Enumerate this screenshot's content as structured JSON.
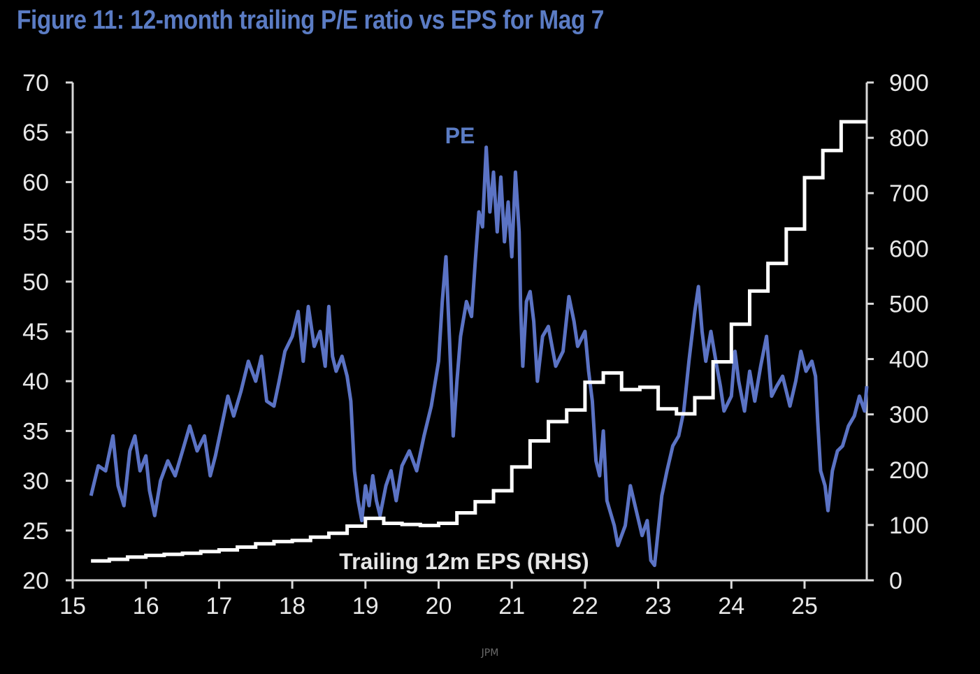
{
  "chart_data": {
    "type": "line",
    "title": "Figure 11: 12-month trailing P/E ratio vs EPS for Mag 7",
    "x_ticks": [
      "15",
      "16",
      "17",
      "18",
      "19",
      "20",
      "21",
      "22",
      "23",
      "24",
      "25"
    ],
    "x_range": [
      15,
      25.85
    ],
    "y_left": {
      "range": [
        20,
        70
      ],
      "ticks": [
        20,
        25,
        30,
        35,
        40,
        45,
        50,
        55,
        60,
        65,
        70
      ]
    },
    "y_right": {
      "range": [
        0,
        900
      ],
      "ticks": [
        0,
        100,
        200,
        300,
        400,
        500,
        600,
        700,
        800,
        900
      ]
    },
    "series": [
      {
        "name": "PE",
        "axis": "left",
        "color": "#5b73c4",
        "style": "line",
        "points": [
          [
            15.25,
            28.5
          ],
          [
            15.35,
            31.5
          ],
          [
            15.45,
            31.0
          ],
          [
            15.55,
            34.5
          ],
          [
            15.62,
            29.5
          ],
          [
            15.7,
            27.5
          ],
          [
            15.78,
            33.0
          ],
          [
            15.85,
            34.5
          ],
          [
            15.92,
            31.0
          ],
          [
            16.0,
            32.5
          ],
          [
            16.05,
            29.0
          ],
          [
            16.12,
            26.5
          ],
          [
            16.2,
            30.0
          ],
          [
            16.3,
            32.0
          ],
          [
            16.4,
            30.5
          ],
          [
            16.5,
            33.0
          ],
          [
            16.6,
            35.5
          ],
          [
            16.7,
            33.0
          ],
          [
            16.8,
            34.5
          ],
          [
            16.88,
            30.5
          ],
          [
            16.95,
            32.5
          ],
          [
            17.05,
            36.0
          ],
          [
            17.12,
            38.5
          ],
          [
            17.2,
            36.5
          ],
          [
            17.3,
            39.0
          ],
          [
            17.4,
            42.0
          ],
          [
            17.5,
            40.0
          ],
          [
            17.58,
            42.5
          ],
          [
            17.65,
            38.0
          ],
          [
            17.75,
            37.5
          ],
          [
            17.82,
            40.0
          ],
          [
            17.9,
            43.0
          ],
          [
            18.0,
            44.5
          ],
          [
            18.08,
            47.0
          ],
          [
            18.15,
            42.0
          ],
          [
            18.22,
            47.5
          ],
          [
            18.3,
            43.5
          ],
          [
            18.38,
            45.0
          ],
          [
            18.45,
            41.5
          ],
          [
            18.5,
            47.5
          ],
          [
            18.55,
            42.5
          ],
          [
            18.6,
            41.0
          ],
          [
            18.68,
            42.5
          ],
          [
            18.75,
            40.5
          ],
          [
            18.8,
            38.0
          ],
          [
            18.85,
            31.0
          ],
          [
            18.9,
            28.0
          ],
          [
            18.95,
            26.0
          ],
          [
            19.0,
            29.5
          ],
          [
            19.05,
            27.5
          ],
          [
            19.1,
            30.5
          ],
          [
            19.15,
            28.0
          ],
          [
            19.2,
            26.5
          ],
          [
            19.28,
            29.5
          ],
          [
            19.35,
            31.0
          ],
          [
            19.42,
            28.0
          ],
          [
            19.5,
            31.5
          ],
          [
            19.6,
            33.0
          ],
          [
            19.7,
            31.0
          ],
          [
            19.8,
            34.5
          ],
          [
            19.9,
            37.5
          ],
          [
            20.0,
            42.0
          ],
          [
            20.05,
            48.0
          ],
          [
            20.1,
            52.5
          ],
          [
            20.15,
            44.0
          ],
          [
            20.2,
            34.5
          ],
          [
            20.25,
            40.0
          ],
          [
            20.3,
            44.5
          ],
          [
            20.38,
            48.0
          ],
          [
            20.45,
            46.5
          ],
          [
            20.5,
            52.0
          ],
          [
            20.55,
            57.0
          ],
          [
            20.6,
            55.5
          ],
          [
            20.65,
            63.5
          ],
          [
            20.7,
            57.0
          ],
          [
            20.75,
            61.0
          ],
          [
            20.8,
            55.0
          ],
          [
            20.85,
            60.5
          ],
          [
            20.9,
            54.0
          ],
          [
            20.95,
            58.0
          ],
          [
            21.0,
            52.5
          ],
          [
            21.05,
            61.0
          ],
          [
            21.1,
            55.0
          ],
          [
            21.12,
            47.5
          ],
          [
            21.15,
            41.5
          ],
          [
            21.2,
            48.0
          ],
          [
            21.25,
            49.0
          ],
          [
            21.3,
            46.0
          ],
          [
            21.35,
            40.0
          ],
          [
            21.42,
            44.5
          ],
          [
            21.5,
            45.5
          ],
          [
            21.6,
            41.5
          ],
          [
            21.7,
            43.0
          ],
          [
            21.78,
            48.5
          ],
          [
            21.85,
            46.0
          ],
          [
            21.9,
            43.5
          ],
          [
            22.0,
            45.0
          ],
          [
            22.05,
            41.0
          ],
          [
            22.1,
            38.0
          ],
          [
            22.15,
            32.0
          ],
          [
            22.2,
            30.5
          ],
          [
            22.25,
            35.0
          ],
          [
            22.3,
            28.0
          ],
          [
            22.4,
            25.5
          ],
          [
            22.45,
            23.5
          ],
          [
            22.55,
            25.5
          ],
          [
            22.62,
            29.5
          ],
          [
            22.7,
            27.0
          ],
          [
            22.78,
            24.5
          ],
          [
            22.85,
            26.0
          ],
          [
            22.9,
            22.0
          ],
          [
            22.95,
            21.5
          ],
          [
            23.0,
            25.0
          ],
          [
            23.05,
            28.5
          ],
          [
            23.12,
            31.0
          ],
          [
            23.2,
            33.5
          ],
          [
            23.28,
            34.5
          ],
          [
            23.35,
            37.0
          ],
          [
            23.42,
            42.0
          ],
          [
            23.5,
            47.0
          ],
          [
            23.55,
            49.5
          ],
          [
            23.6,
            45.0
          ],
          [
            23.65,
            42.0
          ],
          [
            23.72,
            45.0
          ],
          [
            23.8,
            41.5
          ],
          [
            23.85,
            39.5
          ],
          [
            23.9,
            37.0
          ],
          [
            24.0,
            38.5
          ],
          [
            24.05,
            43.0
          ],
          [
            24.1,
            40.0
          ],
          [
            24.18,
            37.0
          ],
          [
            24.25,
            41.0
          ],
          [
            24.32,
            38.0
          ],
          [
            24.4,
            41.5
          ],
          [
            24.48,
            44.5
          ],
          [
            24.55,
            38.5
          ],
          [
            24.62,
            39.5
          ],
          [
            24.7,
            40.5
          ],
          [
            24.8,
            37.5
          ],
          [
            24.88,
            40.0
          ],
          [
            24.95,
            43.0
          ],
          [
            25.02,
            41.0
          ],
          [
            25.1,
            42.0
          ],
          [
            25.15,
            40.5
          ],
          [
            25.18,
            36.0
          ],
          [
            25.22,
            31.0
          ],
          [
            25.28,
            29.5
          ],
          [
            25.32,
            27.0
          ],
          [
            25.38,
            31.0
          ],
          [
            25.45,
            33.0
          ],
          [
            25.52,
            33.5
          ],
          [
            25.6,
            35.5
          ],
          [
            25.68,
            36.5
          ],
          [
            25.75,
            38.5
          ],
          [
            25.82,
            37.0
          ],
          [
            25.85,
            39.5
          ]
        ]
      },
      {
        "name": "Trailing 12m EPS (RHS)",
        "axis": "right",
        "color": "#ffffff",
        "style": "step",
        "points": [
          [
            15.25,
            35
          ],
          [
            15.5,
            38
          ],
          [
            15.75,
            42
          ],
          [
            16.0,
            45
          ],
          [
            16.25,
            47
          ],
          [
            16.5,
            49
          ],
          [
            16.75,
            52
          ],
          [
            17.0,
            55
          ],
          [
            17.25,
            60
          ],
          [
            17.5,
            66
          ],
          [
            17.75,
            70
          ],
          [
            18.0,
            72
          ],
          [
            18.25,
            78
          ],
          [
            18.5,
            85
          ],
          [
            18.75,
            98
          ],
          [
            19.0,
            112
          ],
          [
            19.25,
            103
          ],
          [
            19.5,
            101
          ],
          [
            19.75,
            99
          ],
          [
            20.0,
            103
          ],
          [
            20.25,
            122
          ],
          [
            20.5,
            142
          ],
          [
            20.75,
            162
          ],
          [
            21.0,
            205
          ],
          [
            21.25,
            252
          ],
          [
            21.5,
            287
          ],
          [
            21.75,
            308
          ],
          [
            22.0,
            358
          ],
          [
            22.25,
            375
          ],
          [
            22.5,
            345
          ],
          [
            22.75,
            349
          ],
          [
            23.0,
            310
          ],
          [
            23.25,
            301
          ],
          [
            23.5,
            330
          ],
          [
            23.75,
            395
          ],
          [
            24.0,
            463
          ],
          [
            24.25,
            523
          ],
          [
            24.5,
            573
          ],
          [
            24.75,
            635
          ],
          [
            25.0,
            728
          ],
          [
            25.25,
            777
          ],
          [
            25.5,
            829
          ],
          [
            25.85,
            829
          ]
        ]
      }
    ],
    "annotations": [
      {
        "text": "PE",
        "series": "PE"
      },
      {
        "text": "Trailing 12m EPS (RHS)",
        "series": "Trailing 12m EPS (RHS)"
      }
    ]
  },
  "footer": {
    "source": "JPM"
  }
}
